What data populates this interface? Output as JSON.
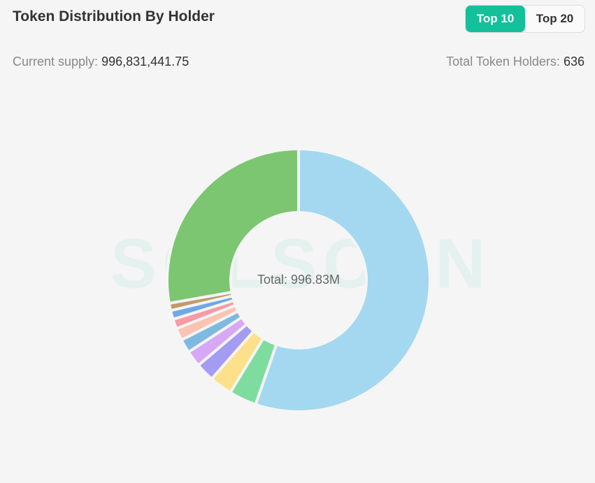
{
  "header": {
    "title": "Token Distribution By Holder",
    "tabs": [
      "Top 10",
      "Top 20"
    ]
  },
  "stats": {
    "supply_label": "Current supply:",
    "supply_value": "996,831,441.75",
    "holders_label": "Total Token Holders:",
    "holders_value": "636"
  },
  "watermark": "SOLSCAN",
  "chart_data": {
    "type": "donut",
    "center_label": "Total: 996.83M",
    "values": [
      55.3,
      3.4,
      2.8,
      2.3,
      2.0,
      1.7,
      1.5,
      1.2,
      1.1,
      0.9,
      27.8
    ],
    "colors": [
      "#a3d8f0",
      "#7fdc9f",
      "#fde08a",
      "#a49cf3",
      "#d7a8f5",
      "#7fb9e0",
      "#fbc3b0",
      "#f79aa3",
      "#6fa8e6",
      "#c09a6b",
      "#7cc571"
    ]
  }
}
